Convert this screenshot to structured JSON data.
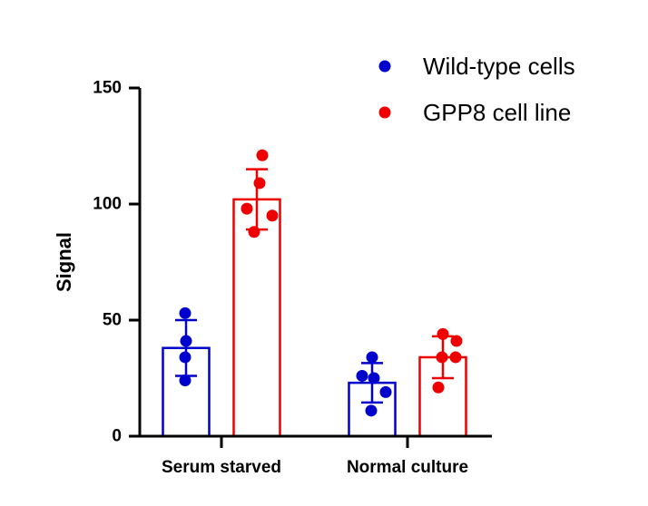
{
  "chart_data": {
    "type": "bar",
    "title": "",
    "xlabel": "",
    "ylabel": "Signal",
    "ylim": [
      0,
      150
    ],
    "yticks": [
      0,
      50,
      100,
      150
    ],
    "categories": [
      "Serum starved",
      "Normal culture"
    ],
    "series": [
      {
        "name": "Wild-type cells",
        "color": "#0000cc",
        "values": [
          38,
          23
        ],
        "error": [
          12,
          8.5
        ],
        "points": [
          [
            53,
            41,
            34,
            24
          ],
          [
            34,
            26,
            25,
            19,
            11
          ]
        ]
      },
      {
        "name": "GPP8 cell line",
        "color": "#ee0000",
        "values": [
          102,
          34
        ],
        "error": [
          13,
          9
        ],
        "points": [
          [
            121,
            109,
            98,
            95,
            88
          ],
          [
            44,
            41,
            34,
            34,
            21
          ]
        ]
      }
    ],
    "legend_position": "top-right"
  }
}
